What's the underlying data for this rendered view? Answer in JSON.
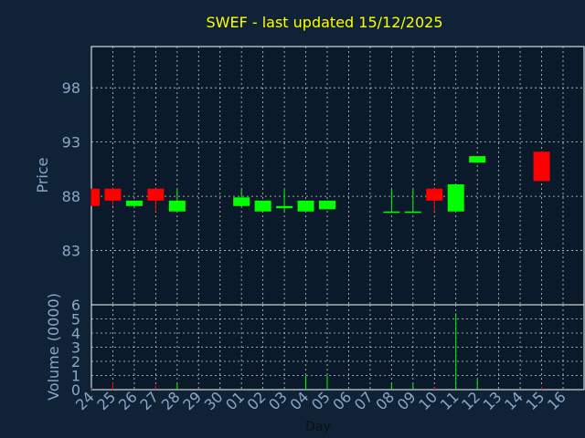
{
  "chart_data": {
    "type": "candlestick",
    "title": "SWEF - last updated 15/12/2025",
    "xlabel": "Day",
    "ylabel": "Price",
    "volume_label": "Volume (0000)",
    "x": [
      "24",
      "25",
      "26",
      "27",
      "28",
      "29",
      "30",
      "01",
      "02",
      "03",
      "04",
      "05",
      "06",
      "07",
      "08",
      "09",
      "10",
      "11",
      "12",
      "13",
      "14",
      "15",
      "16"
    ],
    "price_ticks": [
      "98",
      "93",
      "88",
      "83"
    ],
    "price_tick_values": [
      98,
      93,
      88,
      83
    ],
    "price_range": [
      78,
      101.8
    ],
    "volume_ticks": [
      "0",
      "1",
      "2",
      "3",
      "4",
      "5",
      "6"
    ],
    "volume_range": [
      0,
      6
    ],
    "grid": true,
    "colors": {
      "background": "#0f2236",
      "plot_bg": "#0a1a2a",
      "up": "#00ff00",
      "down": "#ff0000",
      "title": "#ffff00",
      "axis_text": "#8aa8c8",
      "grid": "#c8c8c8"
    },
    "candles": [
      {
        "day": "24",
        "open": 88.7,
        "close": 87.1,
        "high": 88.7,
        "low": 87.1
      },
      {
        "day": "25",
        "open": 88.7,
        "close": 87.6,
        "high": 88.7,
        "low": 87.1
      },
      {
        "day": "26",
        "open": 87.1,
        "close": 87.6,
        "high": 87.6,
        "low": 87.1
      },
      {
        "day": "27",
        "open": 88.7,
        "close": 87.6,
        "high": 88.7,
        "low": 86.6
      },
      {
        "day": "28",
        "open": 86.6,
        "close": 87.6,
        "high": 88.7,
        "low": 86.6
      },
      {
        "day": "01",
        "open": 87.1,
        "close": 87.9,
        "high": 88.6,
        "low": 87.1
      },
      {
        "day": "02",
        "open": 86.6,
        "close": 87.6,
        "high": 87.6,
        "low": 86.6
      },
      {
        "day": "03",
        "open": 86.9,
        "close": 87.1,
        "high": 88.7,
        "low": 86.6
      },
      {
        "day": "04",
        "open": 86.6,
        "close": 87.6,
        "high": 87.6,
        "low": 86.6
      },
      {
        "day": "05",
        "open": 86.8,
        "close": 87.6,
        "high": 87.6,
        "low": 86.8
      },
      {
        "day": "08",
        "open": 86.5,
        "close": 86.6,
        "high": 88.7,
        "low": 86.5
      },
      {
        "day": "09",
        "open": 86.5,
        "close": 86.6,
        "high": 88.7,
        "low": 86.5
      },
      {
        "day": "10",
        "open": 88.7,
        "close": 87.6,
        "high": 88.7,
        "low": 86.6
      },
      {
        "day": "11",
        "open": 86.6,
        "close": 89.1,
        "high": 89.1,
        "low": 86.6
      },
      {
        "day": "12",
        "open": 91.1,
        "close": 91.7,
        "high": 91.7,
        "low": 91.1
      },
      {
        "day": "15",
        "open": 92.1,
        "close": 89.4,
        "high": 92.1,
        "low": 89.4
      }
    ],
    "volumes": [
      {
        "day": "24",
        "value": 0.1,
        "color": "red"
      },
      {
        "day": "25",
        "value": 0.5,
        "color": "red"
      },
      {
        "day": "26",
        "value": 0.1,
        "color": "green"
      },
      {
        "day": "27",
        "value": 0.3,
        "color": "red"
      },
      {
        "day": "28",
        "value": 0.5,
        "color": "green"
      },
      {
        "day": "01",
        "value": 0.1,
        "color": "green"
      },
      {
        "day": "02",
        "value": 0.1,
        "color": "green"
      },
      {
        "day": "03",
        "value": 0.1,
        "color": "green"
      },
      {
        "day": "04",
        "value": 1.0,
        "color": "green"
      },
      {
        "day": "05",
        "value": 1.0,
        "color": "green"
      },
      {
        "day": "08",
        "value": 0.5,
        "color": "green"
      },
      {
        "day": "09",
        "value": 0.4,
        "color": "green"
      },
      {
        "day": "10",
        "value": 0.2,
        "color": "red"
      },
      {
        "day": "11",
        "value": 5.4,
        "color": "green"
      },
      {
        "day": "12",
        "value": 0.7,
        "color": "green"
      },
      {
        "day": "15",
        "value": 0.2,
        "color": "red"
      }
    ]
  }
}
